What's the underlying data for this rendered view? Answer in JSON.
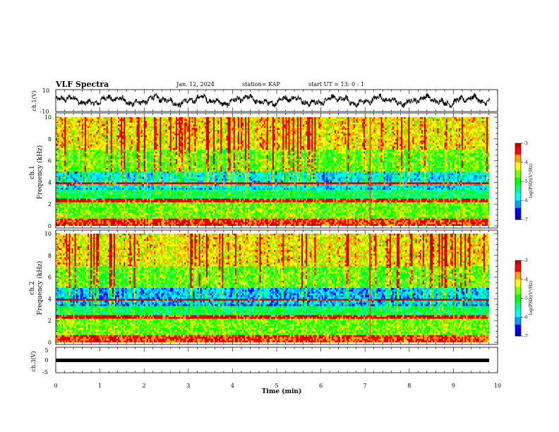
{
  "header": {
    "title": "VLF Spectra",
    "date": "Jan. 12, 2024",
    "station": "station= KAP",
    "start": "start UT =  13: 0  : 1"
  },
  "colors": {
    "palette": [
      "#0000b0",
      "#0000ff",
      "#00a0ff",
      "#00ffff",
      "#00ff80",
      "#00ff00",
      "#80ff00",
      "#ffff00",
      "#ffa000",
      "#ff0000",
      "#c00000"
    ],
    "trace": "#000000"
  },
  "chart_data": [
    {
      "type": "line",
      "ylabel": "ch.1(V)",
      "ylim": [
        -10,
        10
      ],
      "yticks": [
        "10",
        "-10"
      ],
      "x_range_min": [
        0,
        9.83
      ],
      "trace": "voltage waveform (oscillating, roughly ±6 V)"
    },
    {
      "type": "heatmap",
      "ylabel_1": "ch.1",
      "ylabel_2": "Frequency (kHz)",
      "ylim": [
        0,
        10
      ],
      "yticks": [
        "0",
        "2",
        "4",
        "6",
        "8",
        "10"
      ],
      "colorbar": {
        "label": "log(PSD)(V²/Hz)",
        "range": [
          -7,
          -3
        ],
        "ticks": [
          "-3",
          "-4",
          "-5",
          "-6",
          "-7"
        ]
      }
    },
    {
      "type": "heatmap",
      "ylabel_1": "ch.2",
      "ylabel_2": "Frequency (kHz)",
      "ylim": [
        0,
        10
      ],
      "yticks": [
        "0",
        "2",
        "4",
        "6",
        "8",
        "10"
      ],
      "colorbar": {
        "label": "log(PSD)(V²/Hz)",
        "range": [
          -7,
          -3
        ],
        "ticks": [
          "-3",
          "-4",
          "-5",
          "-6",
          "-7"
        ]
      }
    },
    {
      "type": "line",
      "ylabel": "ch.3(V)",
      "ylim": [
        -5,
        5
      ],
      "yticks": [
        "5",
        "0",
        "-5"
      ],
      "constant_value": -0.5
    }
  ],
  "xaxis": {
    "label": "Time (min)",
    "range": [
      0,
      10
    ],
    "ticks": [
      "0",
      "1",
      "2",
      "3",
      "4",
      "5",
      "6",
      "7",
      "8",
      "9",
      "10"
    ]
  }
}
